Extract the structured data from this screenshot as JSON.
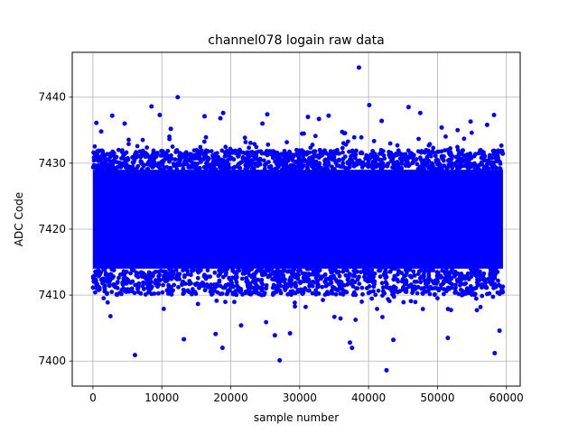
{
  "chart_data": {
    "type": "scatter",
    "title": "channel078 logain raw data",
    "xlabel": "sample number",
    "ylabel": "ADC Code",
    "xlim": [
      -3000,
      62000
    ],
    "ylim": [
      7396.2,
      7446.8
    ],
    "xticks": [
      0,
      10000,
      20000,
      30000,
      40000,
      50000,
      60000
    ],
    "xtick_labels": [
      "0",
      "10000",
      "20000",
      "30000",
      "40000",
      "50000",
      "60000"
    ],
    "yticks": [
      7400,
      7410,
      7420,
      7430,
      7440
    ],
    "ytick_labels": [
      "7400",
      "7410",
      "7420",
      "7430",
      "7440"
    ],
    "grid": true,
    "marker_color": "#0000ff",
    "n_samples": 60000,
    "dense_band": {
      "x_range": [
        0,
        59500
      ],
      "y_range": [
        7414,
        7429
      ]
    },
    "outliers": [
      {
        "x": 500,
        "y": 7436.1
      },
      {
        "x": 1200,
        "y": 7434.8
      },
      {
        "x": 2800,
        "y": 7437.2
      },
      {
        "x": 4600,
        "y": 7436.0
      },
      {
        "x": 6100,
        "y": 7400.9
      },
      {
        "x": 8500,
        "y": 7438.6
      },
      {
        "x": 9700,
        "y": 7437.3
      },
      {
        "x": 11300,
        "y": 7435.2
      },
      {
        "x": 12300,
        "y": 7440.0
      },
      {
        "x": 13200,
        "y": 7403.3
      },
      {
        "x": 16200,
        "y": 7437.1
      },
      {
        "x": 17800,
        "y": 7404.1
      },
      {
        "x": 18500,
        "y": 7436.8
      },
      {
        "x": 18800,
        "y": 7402.0
      },
      {
        "x": 18900,
        "y": 7437.6
      },
      {
        "x": 21500,
        "y": 7405.4
      },
      {
        "x": 24600,
        "y": 7436.0
      },
      {
        "x": 25300,
        "y": 7437.4
      },
      {
        "x": 26400,
        "y": 7403.9
      },
      {
        "x": 27100,
        "y": 7400.1
      },
      {
        "x": 28600,
        "y": 7404.2
      },
      {
        "x": 31200,
        "y": 7437.0
      },
      {
        "x": 32800,
        "y": 7436.7
      },
      {
        "x": 34200,
        "y": 7437.2
      },
      {
        "x": 37300,
        "y": 7402.8
      },
      {
        "x": 37600,
        "y": 7402.0
      },
      {
        "x": 38600,
        "y": 7444.5
      },
      {
        "x": 40100,
        "y": 7438.8
      },
      {
        "x": 41900,
        "y": 7436.4
      },
      {
        "x": 42600,
        "y": 7398.6
      },
      {
        "x": 43600,
        "y": 7403.2
      },
      {
        "x": 45800,
        "y": 7438.5
      },
      {
        "x": 47500,
        "y": 7437.6
      },
      {
        "x": 50600,
        "y": 7435.4
      },
      {
        "x": 51500,
        "y": 7403.5
      },
      {
        "x": 54800,
        "y": 7436.3
      },
      {
        "x": 57200,
        "y": 7435.8
      },
      {
        "x": 58200,
        "y": 7437.3
      },
      {
        "x": 58300,
        "y": 7401.2
      },
      {
        "x": 59000,
        "y": 7404.6
      }
    ]
  }
}
